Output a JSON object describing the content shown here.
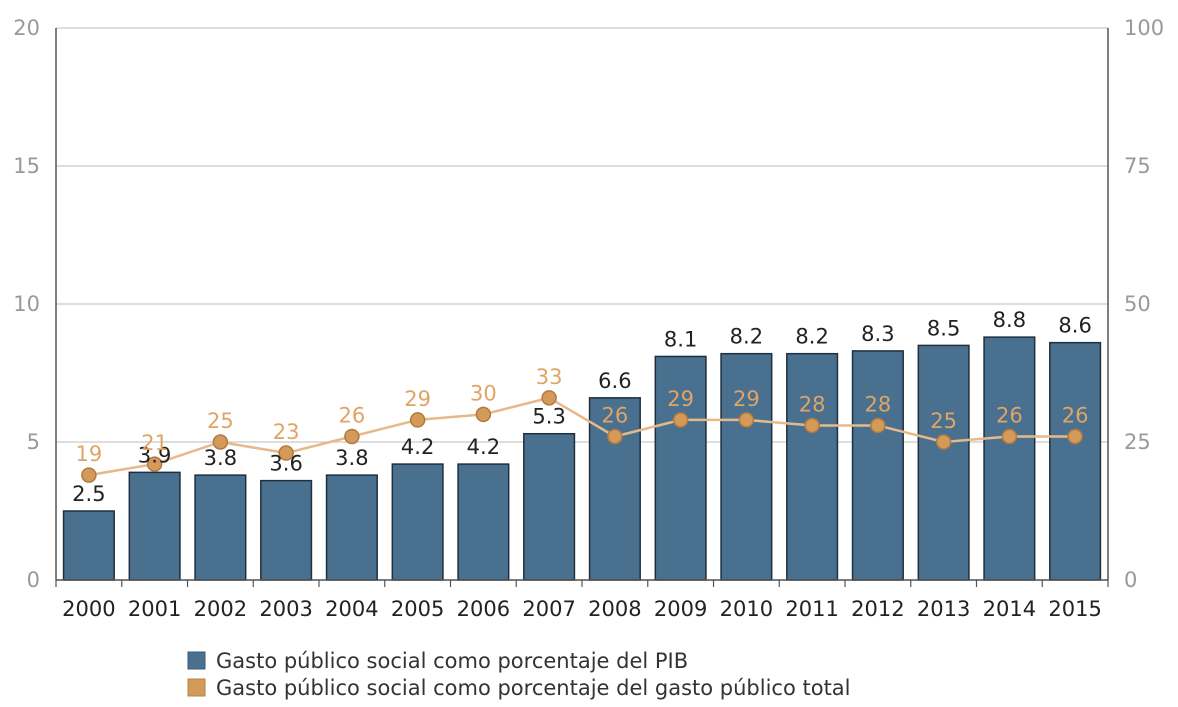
{
  "chart_data": {
    "type": "bar",
    "categories": [
      "2000",
      "2001",
      "2002",
      "2003",
      "2004",
      "2005",
      "2006",
      "2007",
      "2008",
      "2009",
      "2010",
      "2011",
      "2012",
      "2013",
      "2014",
      "2015"
    ],
    "series": [
      {
        "name": "Gasto público social como porcentaje del PIB",
        "type": "bar",
        "axis": "left",
        "color": "#4a7090",
        "values": [
          2.5,
          3.9,
          3.8,
          3.6,
          3.8,
          4.2,
          4.2,
          5.3,
          6.6,
          8.1,
          8.2,
          8.2,
          8.3,
          8.5,
          8.8,
          8.6
        ],
        "labels": [
          "2.5",
          "3.9",
          "3.8",
          "3.6",
          "3.8",
          "4.2",
          "4.2",
          "5.3",
          "6.6",
          "8.1",
          "8.2",
          "8.2",
          "8.3",
          "8.5",
          "8.8",
          "8.6"
        ]
      },
      {
        "name": "Gasto público social como porcentaje del gasto público total",
        "type": "line",
        "axis": "right",
        "color": "#d49a5a",
        "values": [
          19,
          21,
          25,
          23,
          26,
          29,
          30,
          33,
          26,
          29,
          29,
          28,
          28,
          25,
          26,
          26
        ],
        "labels": [
          "19",
          "21",
          "25",
          "23",
          "26",
          "29",
          "30",
          "33",
          "26",
          "29",
          "29",
          "28",
          "28",
          "25",
          "26",
          "26"
        ]
      }
    ],
    "y_left": {
      "range": [
        0,
        20
      ],
      "ticks": [
        "0",
        "5",
        "10",
        "15",
        "20"
      ]
    },
    "y_right": {
      "range": [
        0,
        100
      ],
      "ticks": [
        "0",
        "25",
        "50",
        "75",
        "100"
      ]
    },
    "grid": true,
    "legend_position": "bottom"
  }
}
